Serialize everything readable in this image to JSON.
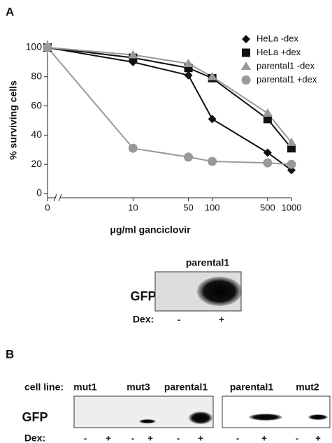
{
  "chart_data": {
    "type": "line",
    "ylabel": "% surviving cells",
    "xlabel": "μg/ml ganciclovir",
    "x": [
      0,
      10,
      50,
      100,
      500,
      1000
    ],
    "xscale": "log",
    "xlim": [
      1,
      1000
    ],
    "xticks": [
      0,
      10,
      50,
      100,
      500,
      1000
    ],
    "axis_break": true,
    "ylim": [
      0,
      100
    ],
    "yticks": [
      0,
      20,
      40,
      60,
      80,
      100
    ],
    "grid": false,
    "legend": "upper right",
    "series": [
      {
        "name": "HeLa -dex",
        "color": "#111111",
        "marker": "diamond",
        "values": [
          100,
          90,
          81,
          51,
          28,
          16
        ]
      },
      {
        "name": "HeLa +dex",
        "color": "#111111",
        "marker": "square",
        "values": [
          100,
          93,
          86,
          79,
          51,
          31
        ]
      },
      {
        "name": "parental1 -dex",
        "color": "#999999",
        "marker": "triangle",
        "values": [
          100,
          95,
          89,
          80,
          55,
          35
        ]
      },
      {
        "name": "parental1 +dex",
        "color": "#999999",
        "marker": "circle",
        "values": [
          100,
          31,
          25,
          22,
          21,
          20
        ]
      }
    ]
  },
  "panel_labels": [
    "A",
    "B"
  ],
  "blot_1": {
    "title": "parental1",
    "row_label": "GFP",
    "dex_label": "Dex:",
    "dex": [
      "-",
      "+"
    ]
  },
  "blot_2": {
    "cell_line_label": "cell line:",
    "cell_lines": [
      "mut1",
      "mut3",
      "parental1",
      "parental1",
      "mut2"
    ],
    "row_label": "GFP",
    "dex_label": "Dex:",
    "dex": [
      "-",
      "+",
      "-",
      "+",
      "-",
      "+",
      "-",
      "+",
      "-",
      "+"
    ]
  }
}
